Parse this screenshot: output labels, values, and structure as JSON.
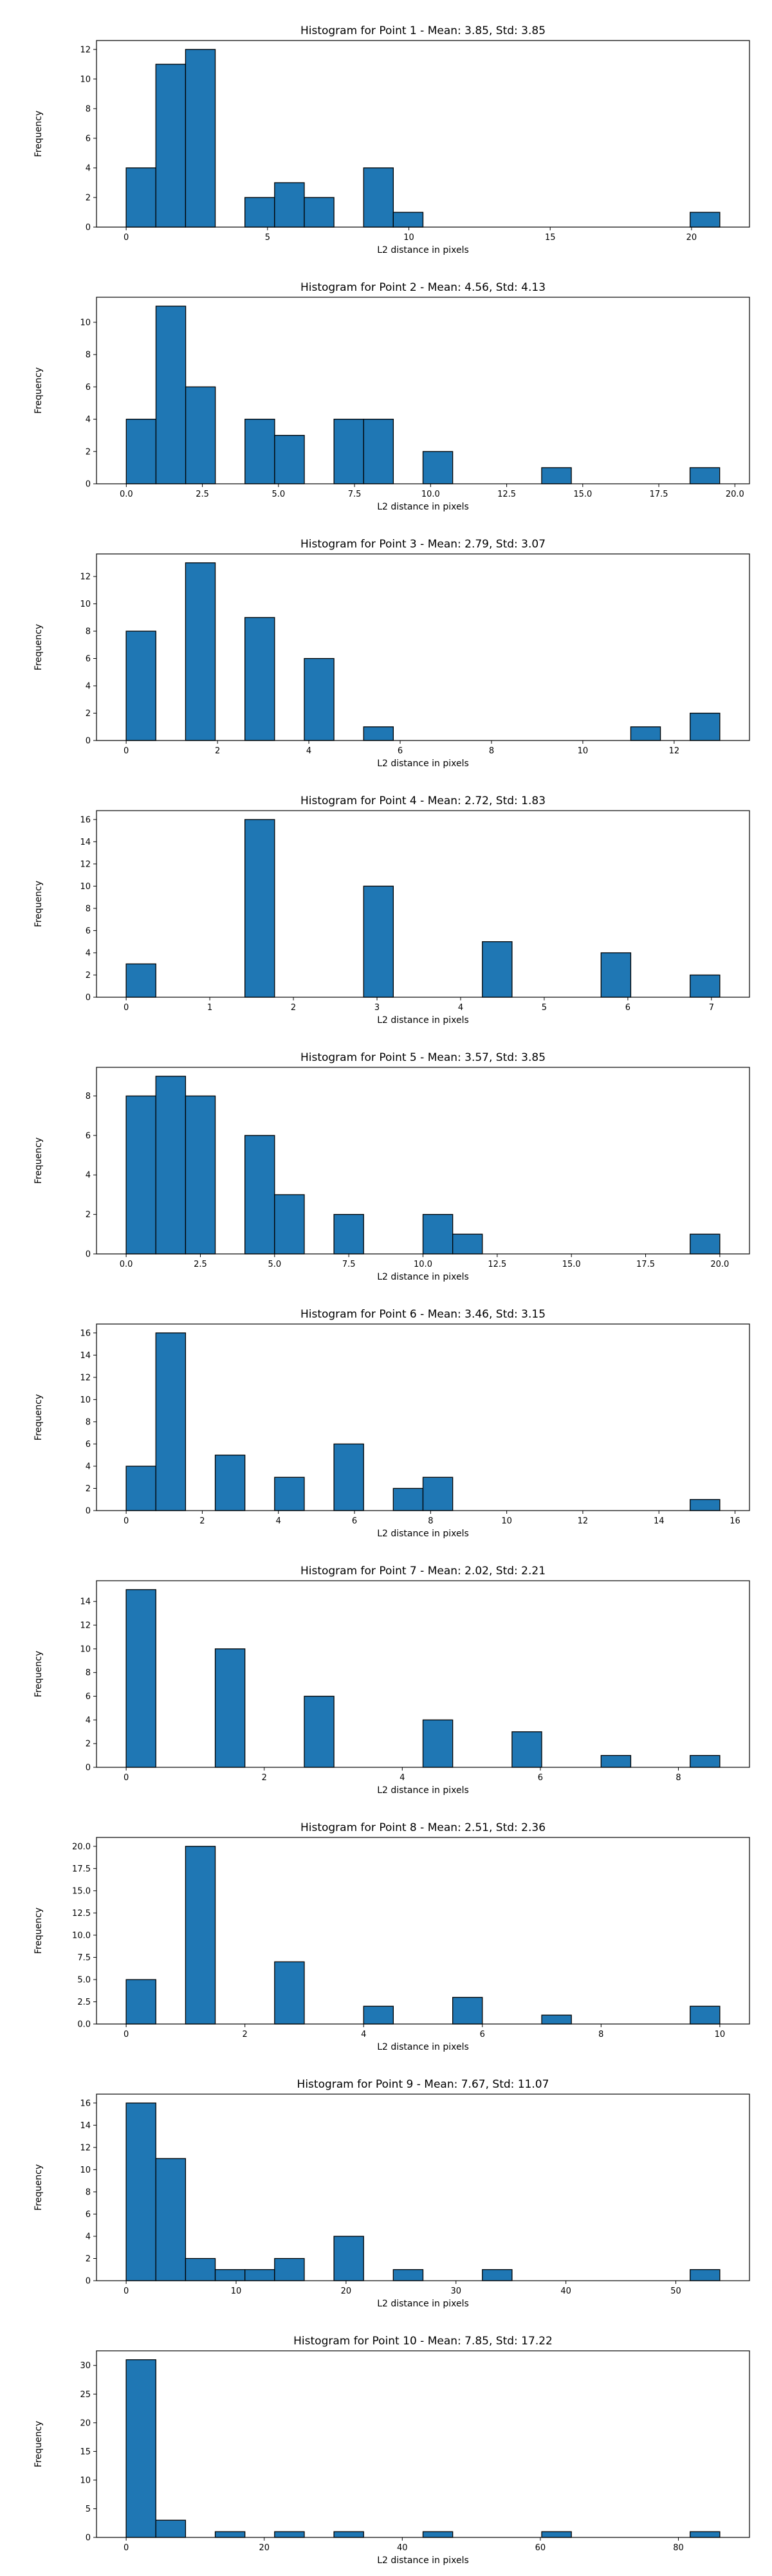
{
  "figure": {
    "background": "#ffffff"
  },
  "style": {
    "bar_fill": "#1f77b4",
    "bar_edge": "#000000"
  },
  "chart_data": [
    {
      "type": "bar",
      "title": "Histogram for Point 1 - Mean: 3.85, Std: 3.85",
      "xlabel": "L2 distance in pixels",
      "ylabel": "Frequency",
      "xlim": [
        -1.05,
        22.05
      ],
      "ylim": [
        0,
        12.6
      ],
      "xticks": [
        0,
        5,
        10,
        15,
        20
      ],
      "xtick_labels": [
        "0",
        "5",
        "10",
        "15",
        "20"
      ],
      "yticks": [
        0,
        2,
        4,
        6,
        8,
        10,
        12
      ],
      "ytick_labels": [
        "0",
        "2",
        "4",
        "6",
        "8",
        "10",
        "12"
      ],
      "bins": [
        0,
        1.05,
        2.1,
        3.15,
        4.2,
        5.25,
        6.3,
        7.35,
        8.4,
        9.45,
        10.5,
        11.55,
        12.6,
        13.65,
        14.7,
        15.75,
        16.8,
        17.85,
        18.9,
        19.95,
        21.0
      ],
      "counts": [
        4,
        11,
        12,
        0,
        2,
        3,
        2,
        0,
        4,
        1,
        0,
        0,
        0,
        0,
        0,
        0,
        0,
        0,
        0,
        1
      ]
    },
    {
      "type": "bar",
      "title": "Histogram for Point 2 - Mean: 4.56, Std: 4.13",
      "xlabel": "L2 distance in pixels",
      "ylabel": "Frequency",
      "xlim": [
        -0.98,
        20.48
      ],
      "ylim": [
        0,
        11.55
      ],
      "xticks": [
        0,
        2.5,
        5,
        7.5,
        10,
        12.5,
        15,
        17.5,
        20
      ],
      "xtick_labels": [
        "0.0",
        "2.5",
        "5.0",
        "7.5",
        "10.0",
        "12.5",
        "15.0",
        "17.5",
        "20.0"
      ],
      "yticks": [
        0,
        2,
        4,
        6,
        8,
        10
      ],
      "ytick_labels": [
        "0",
        "2",
        "4",
        "6",
        "8",
        "10"
      ],
      "bins": [
        0,
        0.975,
        1.95,
        2.925,
        3.9,
        4.875,
        5.85,
        6.825,
        7.8,
        8.775,
        9.75,
        10.725,
        11.7,
        12.675,
        13.65,
        14.625,
        15.6,
        16.575,
        17.55,
        18.525,
        19.5
      ],
      "counts": [
        4,
        11,
        6,
        0,
        4,
        3,
        0,
        4,
        4,
        0,
        2,
        0,
        0,
        0,
        1,
        0,
        0,
        0,
        0,
        1
      ]
    },
    {
      "type": "bar",
      "title": "Histogram for Point 3 - Mean: 2.79, Std: 3.07",
      "xlabel": "L2 distance in pixels",
      "ylabel": "Frequency",
      "xlim": [
        -0.65,
        13.65
      ],
      "ylim": [
        0,
        13.65
      ],
      "xticks": [
        0,
        2,
        4,
        6,
        8,
        10,
        12
      ],
      "xtick_labels": [
        "0",
        "2",
        "4",
        "6",
        "8",
        "10",
        "12"
      ],
      "yticks": [
        0,
        2,
        4,
        6,
        8,
        10,
        12
      ],
      "ytick_labels": [
        "0",
        "2",
        "4",
        "6",
        "8",
        "10",
        "12"
      ],
      "bins": [
        0,
        0.65,
        1.3,
        1.95,
        2.6,
        3.25,
        3.9,
        4.55,
        5.2,
        5.85,
        6.5,
        7.15,
        7.8,
        8.45,
        9.1,
        9.75,
        10.4,
        11.05,
        11.7,
        12.35,
        13.0
      ],
      "counts": [
        8,
        0,
        13,
        0,
        9,
        0,
        6,
        0,
        1,
        0,
        0,
        0,
        0,
        0,
        0,
        0,
        0,
        1,
        0,
        2
      ]
    },
    {
      "type": "bar",
      "title": "Histogram for Point 4 - Mean: 2.72, Std: 1.83",
      "xlabel": "L2 distance in pixels",
      "ylabel": "Frequency",
      "xlim": [
        -0.355,
        7.455
      ],
      "ylim": [
        0,
        16.8
      ],
      "xticks": [
        0,
        1,
        2,
        3,
        4,
        5,
        6,
        7
      ],
      "xtick_labels": [
        "0",
        "1",
        "2",
        "3",
        "4",
        "5",
        "6",
        "7"
      ],
      "yticks": [
        0,
        2,
        4,
        6,
        8,
        10,
        12,
        14,
        16
      ],
      "ytick_labels": [
        "0",
        "2",
        "4",
        "6",
        "8",
        "10",
        "12",
        "14",
        "16"
      ],
      "bins": [
        0,
        0.355,
        0.71,
        1.065,
        1.42,
        1.775,
        2.13,
        2.485,
        2.84,
        3.195,
        3.55,
        3.905,
        4.26,
        4.615,
        4.97,
        5.325,
        5.68,
        6.035,
        6.39,
        6.745,
        7.1
      ],
      "counts": [
        3,
        0,
        0,
        0,
        16,
        0,
        0,
        0,
        10,
        0,
        0,
        0,
        5,
        0,
        0,
        0,
        4,
        0,
        0,
        2
      ]
    },
    {
      "type": "bar",
      "title": "Histogram for Point 5 - Mean: 3.57, Std: 3.85",
      "xlabel": "L2 distance in pixels",
      "ylabel": "Frequency",
      "xlim": [
        -1.0,
        21.0
      ],
      "ylim": [
        0,
        9.45
      ],
      "xticks": [
        0,
        2.5,
        5,
        7.5,
        10,
        12.5,
        15,
        17.5,
        20
      ],
      "xtick_labels": [
        "0.0",
        "2.5",
        "5.0",
        "7.5",
        "10.0",
        "12.5",
        "15.0",
        "17.5",
        "20.0"
      ],
      "yticks": [
        0,
        2,
        4,
        6,
        8
      ],
      "ytick_labels": [
        "0",
        "2",
        "4",
        "6",
        "8"
      ],
      "bins": [
        0,
        1.0,
        2.0,
        3.0,
        4.0,
        5.0,
        6.0,
        7.0,
        8.0,
        9.0,
        10.0,
        11.0,
        12.0,
        13.0,
        14.0,
        15.0,
        16.0,
        17.0,
        18.0,
        19.0,
        20.0
      ],
      "counts": [
        8,
        9,
        8,
        0,
        6,
        3,
        0,
        2,
        0,
        0,
        2,
        1,
        0,
        0,
        0,
        0,
        0,
        0,
        0,
        1
      ]
    },
    {
      "type": "bar",
      "title": "Histogram for Point 6 - Mean: 3.46, Std: 3.15",
      "xlabel": "L2 distance in pixels",
      "ylabel": "Frequency",
      "xlim": [
        -0.78,
        16.38
      ],
      "ylim": [
        0,
        16.8
      ],
      "xticks": [
        0,
        2,
        4,
        6,
        8,
        10,
        12,
        14,
        16
      ],
      "xtick_labels": [
        "0",
        "2",
        "4",
        "6",
        "8",
        "10",
        "12",
        "14",
        "16"
      ],
      "yticks": [
        0,
        2,
        4,
        6,
        8,
        10,
        12,
        14,
        16
      ],
      "ytick_labels": [
        "0",
        "2",
        "4",
        "6",
        "8",
        "10",
        "12",
        "14",
        "16"
      ],
      "bins": [
        0,
        0.78,
        1.56,
        2.34,
        3.12,
        3.9,
        4.68,
        5.46,
        6.24,
        7.02,
        7.8,
        8.58,
        9.36,
        10.14,
        10.92,
        11.7,
        12.48,
        13.26,
        14.04,
        14.82,
        15.6
      ],
      "counts": [
        4,
        16,
        0,
        5,
        0,
        3,
        0,
        6,
        0,
        2,
        3,
        0,
        0,
        0,
        0,
        0,
        0,
        0,
        0,
        1
      ]
    },
    {
      "type": "bar",
      "title": "Histogram for Point 7 - Mean: 2.02, Std: 2.21",
      "xlabel": "L2 distance in pixels",
      "ylabel": "Frequency",
      "xlim": [
        -0.43,
        9.03
      ],
      "ylim": [
        0,
        15.75
      ],
      "xticks": [
        0,
        2,
        4,
        6,
        8
      ],
      "xtick_labels": [
        "0",
        "2",
        "4",
        "6",
        "8"
      ],
      "yticks": [
        0,
        2,
        4,
        6,
        8,
        10,
        12,
        14
      ],
      "ytick_labels": [
        "0",
        "2",
        "4",
        "6",
        "8",
        "10",
        "12",
        "14"
      ],
      "bins": [
        0,
        0.43,
        0.86,
        1.29,
        1.72,
        2.15,
        2.58,
        3.01,
        3.44,
        3.87,
        4.3,
        4.73,
        5.16,
        5.59,
        6.02,
        6.45,
        6.88,
        7.31,
        7.74,
        8.17,
        8.6
      ],
      "counts": [
        15,
        0,
        0,
        10,
        0,
        0,
        6,
        0,
        0,
        0,
        4,
        0,
        0,
        3,
        0,
        0,
        1,
        0,
        0,
        1
      ]
    },
    {
      "type": "bar",
      "title": "Histogram for Point 8 - Mean: 2.51, Std: 2.36",
      "xlabel": "L2 distance in pixels",
      "ylabel": "Frequency",
      "xlim": [
        -0.5,
        10.5
      ],
      "ylim": [
        0,
        21.0
      ],
      "xticks": [
        0,
        2,
        4,
        6,
        8,
        10
      ],
      "xtick_labels": [
        "0",
        "2",
        "4",
        "6",
        "8",
        "10"
      ],
      "yticks": [
        0,
        2.5,
        5,
        7.5,
        10,
        12.5,
        15,
        17.5,
        20
      ],
      "ytick_labels": [
        "0.0",
        "2.5",
        "5.0",
        "7.5",
        "10.0",
        "12.5",
        "15.0",
        "17.5",
        "20.0"
      ],
      "bins": [
        0,
        0.5,
        1.0,
        1.5,
        2.0,
        2.5,
        3.0,
        3.5,
        4.0,
        4.5,
        5.0,
        5.5,
        6.0,
        6.5,
        7.0,
        7.5,
        8.0,
        8.5,
        9.0,
        9.5,
        10.0
      ],
      "counts": [
        5,
        0,
        20,
        0,
        0,
        7,
        0,
        0,
        2,
        0,
        0,
        3,
        0,
        0,
        1,
        0,
        0,
        0,
        0,
        2
      ]
    },
    {
      "type": "bar",
      "title": "Histogram for Point 9 - Mean: 7.67, Std: 11.07",
      "xlabel": "L2 distance in pixels",
      "ylabel": "Frequency",
      "xlim": [
        -2.7,
        56.7
      ],
      "ylim": [
        0,
        16.8
      ],
      "xticks": [
        0,
        10,
        20,
        30,
        40,
        50
      ],
      "xtick_labels": [
        "0",
        "10",
        "20",
        "30",
        "40",
        "50"
      ],
      "yticks": [
        0,
        2,
        4,
        6,
        8,
        10,
        12,
        14,
        16
      ],
      "ytick_labels": [
        "0",
        "2",
        "4",
        "6",
        "8",
        "10",
        "12",
        "14",
        "16"
      ],
      "bins": [
        0,
        2.7,
        5.4,
        8.1,
        10.8,
        13.5,
        16.2,
        18.9,
        21.6,
        24.3,
        27.0,
        29.7,
        32.4,
        35.1,
        37.8,
        40.5,
        43.2,
        45.9,
        48.6,
        51.3,
        54.0
      ],
      "counts": [
        16,
        11,
        2,
        1,
        1,
        2,
        0,
        4,
        0,
        1,
        0,
        0,
        1,
        0,
        0,
        0,
        0,
        0,
        0,
        1
      ]
    },
    {
      "type": "bar",
      "title": "Histogram for Point 10 - Mean: 7.85, Std: 17.22",
      "xlabel": "L2 distance in pixels",
      "ylabel": "Frequency",
      "xlim": [
        -4.3,
        90.3
      ],
      "ylim": [
        0,
        32.55
      ],
      "xticks": [
        0,
        20,
        40,
        60,
        80
      ],
      "xtick_labels": [
        "0",
        "20",
        "40",
        "60",
        "80"
      ],
      "yticks": [
        0,
        5,
        10,
        15,
        20,
        25,
        30
      ],
      "ytick_labels": [
        "0",
        "5",
        "10",
        "15",
        "20",
        "25",
        "30"
      ],
      "bins": [
        0,
        4.3,
        8.6,
        12.9,
        17.2,
        21.5,
        25.8,
        30.1,
        34.4,
        38.7,
        43.0,
        47.3,
        51.6,
        55.9,
        60.2,
        64.5,
        68.8,
        73.1,
        77.4,
        81.7,
        86.0
      ],
      "counts": [
        31,
        3,
        0,
        1,
        0,
        1,
        0,
        1,
        0,
        0,
        1,
        0,
        0,
        0,
        1,
        0,
        0,
        0,
        0,
        1
      ]
    }
  ]
}
